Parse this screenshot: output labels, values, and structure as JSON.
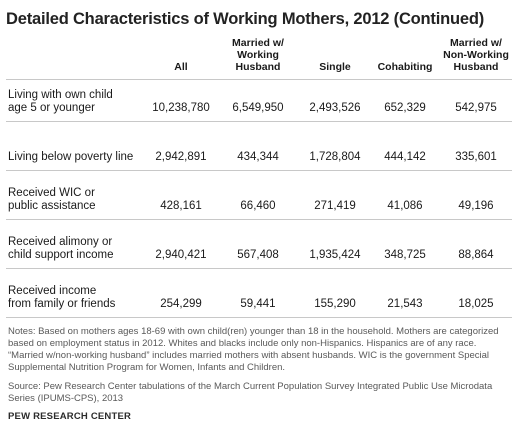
{
  "title": "Detailed Characteristics of Working Mothers, 2012 (Continued)",
  "columns": [
    "All",
    "Married w/ Working Husband",
    "Single",
    "Cohabiting",
    "Married w/ Non-Working Husband"
  ],
  "rows": [
    {
      "label": "Living with own child age 5 or younger",
      "values": [
        "10,238,780",
        "6,549,950",
        "2,493,526",
        "652,329",
        "542,975"
      ]
    },
    {
      "label": "Living below poverty line",
      "values": [
        "2,942,891",
        "434,344",
        "1,728,804",
        "444,142",
        "335,601"
      ]
    },
    {
      "label": "Received WIC or public assistance",
      "values": [
        "428,161",
        "66,460",
        "271,419",
        "41,086",
        "49,196"
      ]
    },
    {
      "label": "Received alimony or child support income",
      "values": [
        "2,940,421",
        "567,408",
        "1,935,424",
        "348,725",
        "88,864"
      ]
    },
    {
      "label": "Received income from family or friends",
      "values": [
        "254,299",
        "59,441",
        "155,290",
        "21,543",
        "18,025"
      ]
    }
  ],
  "notes": "Notes: Based on mothers ages 18-69 with own child(ren) younger than 18 in the household. Mothers are categorized based on employment status in 2012. Whites and blacks include only non-Hispanics. Hispanics are of any race. “Married w/non-working husband” includes married mothers with absent husbands. WIC is the government Special Supplemental Nutrition Program for Women, Infants and Children.",
  "source": "Source: Pew Research Center tabulations of the March Current Population Survey Integrated Public Use Microdata Series (IPUMS-CPS), 2013",
  "organization": "PEW RESEARCH CENTER"
}
